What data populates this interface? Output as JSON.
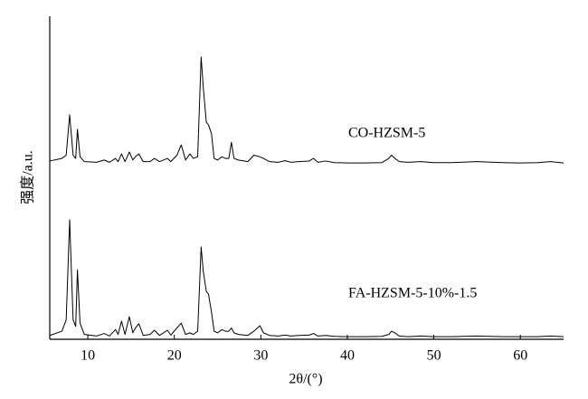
{
  "chart_data": {
    "type": "line",
    "x_label": "2θ/(°)",
    "y_label": "强度/a.u.",
    "xlim": [
      5.6,
      65
    ],
    "xticks": [
      10,
      20,
      30,
      40,
      50,
      60
    ],
    "ylim": [
      0,
      100
    ],
    "annotations": [
      "CO-HZSM-5",
      "FA-HZSM-5-10%-1.5"
    ],
    "x": [
      5.6,
      7,
      7.5,
      7.9,
      8.3,
      8.6,
      8.8,
      9.1,
      9.6,
      11,
      11.9,
      12.5,
      13.2,
      13.5,
      13.9,
      14.3,
      14.8,
      15.2,
      15.5,
      15.9,
      16.4,
      17.2,
      17.7,
      18.3,
      19.2,
      19.6,
      20.3,
      20.8,
      21.3,
      21.8,
      22.2,
      22.7,
      23.1,
      23.35,
      23.7,
      23.95,
      24.3,
      24.6,
      25.0,
      25.5,
      25.9,
      26.3,
      26.6,
      26.9,
      27.4,
      28.5,
      29.2,
      29.9,
      30.3,
      31,
      32,
      32.8,
      33.5,
      34.4,
      35.6,
      36.1,
      36.6,
      37.5,
      38.5,
      40,
      42,
      44,
      44.8,
      45.1,
      45.5,
      46,
      47,
      48.5,
      50,
      52,
      55,
      58,
      60,
      62,
      63.5,
      65
    ],
    "series": [
      {
        "color": "#000000",
        "values": [
          55.2,
          56,
          57,
          69.5,
          57,
          56,
          65,
          56.5,
          55,
          54.8,
          55.5,
          54.8,
          56,
          55,
          57.4,
          55,
          58,
          55.5,
          56.5,
          57.4,
          55,
          55,
          56,
          55,
          56,
          55,
          57,
          60.2,
          55.5,
          57.4,
          56,
          56.5,
          87.4,
          77.9,
          67.2,
          66.4,
          63.6,
          56,
          55.5,
          56.5,
          56,
          56,
          61,
          56,
          55.5,
          55,
          57,
          56.5,
          56,
          55,
          54.8,
          55.3,
          54.8,
          55,
          55.2,
          56,
          54.8,
          55.2,
          54.7,
          54.6,
          54.6,
          54.7,
          56,
          57,
          56,
          55,
          54.8,
          55,
          54.7,
          54.7,
          55,
          54.7,
          54.6,
          54.7,
          55,
          54.6
        ]
      },
      {
        "color": "#000000",
        "values": [
          1.2,
          2.5,
          6,
          37,
          6,
          4,
          21.5,
          5,
          1.5,
          1,
          1.8,
          1,
          3,
          1.5,
          5.6,
          1.5,
          7,
          2,
          3.5,
          4.8,
          1.2,
          1.5,
          2.8,
          1.2,
          2.8,
          1.3,
          3.5,
          5,
          1.5,
          2,
          1.5,
          2.5,
          28.6,
          21,
          14.8,
          14,
          8.4,
          2.5,
          2,
          3,
          2.5,
          2.5,
          3.5,
          2,
          1.5,
          1.2,
          2.5,
          4.2,
          2,
          1.2,
          1,
          1.3,
          1,
          1.2,
          1.3,
          1.8,
          1,
          1.2,
          0.9,
          0.8,
          0.8,
          0.9,
          1.5,
          2.5,
          2,
          1,
          0.8,
          1,
          0.8,
          0.8,
          1,
          0.8,
          0.8,
          0.8,
          1,
          0.8
        ]
      }
    ]
  }
}
